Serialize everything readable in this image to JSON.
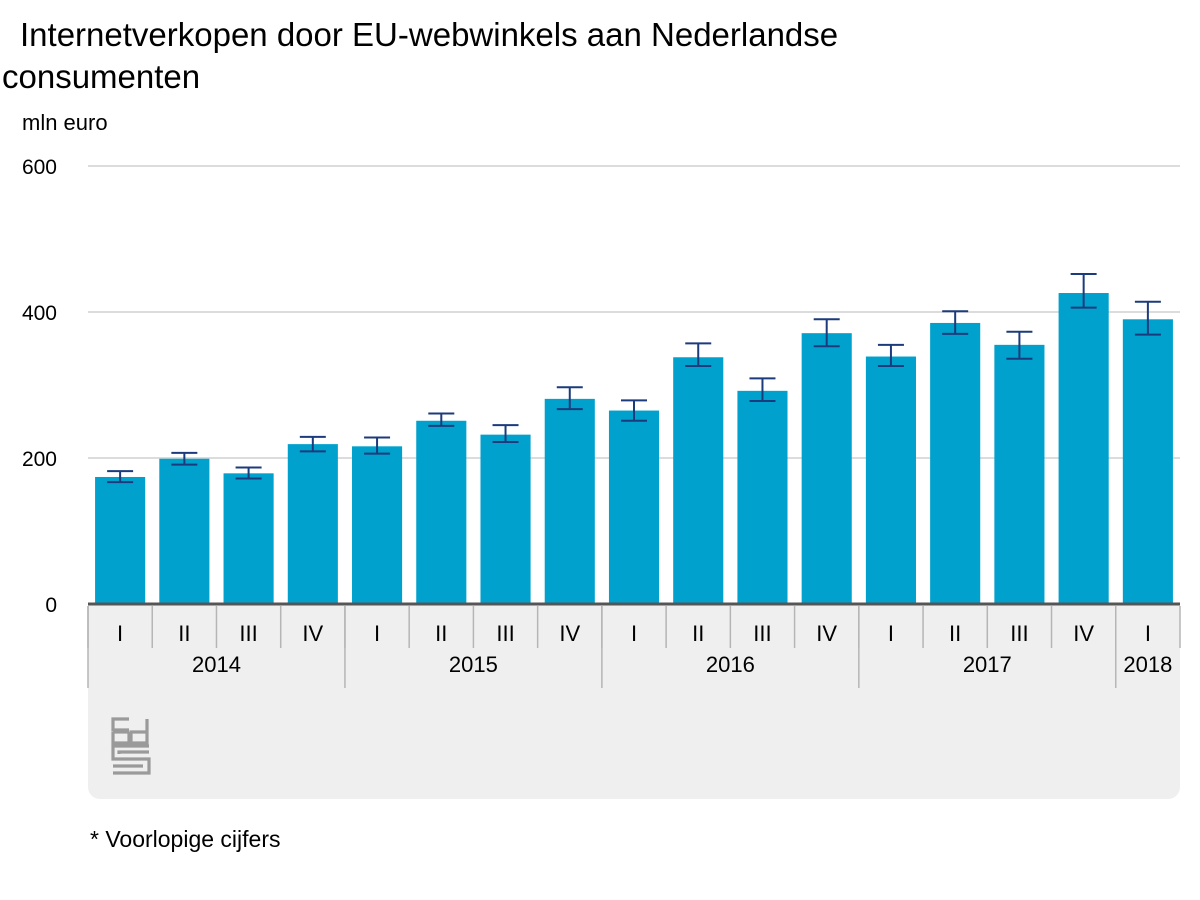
{
  "chart_data": {
    "type": "bar",
    "title": "Internetverkopen door EU-webwinkels aan Nederlandse consumenten",
    "title_lines": [
      "Internetverkopen door EU-webwinkels aan Nederlandse",
      "consumenten"
    ],
    "ylabel": "mln euro",
    "ylim": [
      0,
      600
    ],
    "yticks": [
      0,
      200,
      400,
      600
    ],
    "categories": [
      "I",
      "II",
      "III",
      "IV",
      "I",
      "II",
      "III",
      "IV",
      "I",
      "II",
      "III",
      "IV",
      "I",
      "II",
      "III",
      "IV",
      "I"
    ],
    "years": [
      {
        "label": "2014",
        "span": 4
      },
      {
        "label": "2015",
        "span": 4
      },
      {
        "label": "2016",
        "span": 4
      },
      {
        "label": "2017",
        "span": 4
      },
      {
        "label": "2018",
        "span": 1
      }
    ],
    "values": [
      174,
      199,
      179,
      219,
      216,
      251,
      232,
      281,
      265,
      338,
      292,
      371,
      339,
      385,
      355,
      426,
      390
    ],
    "error_low": [
      167,
      191,
      172,
      209,
      206,
      244,
      222,
      267,
      251,
      326,
      278,
      353,
      326,
      370,
      336,
      406,
      369
    ],
    "error_high": [
      182,
      207,
      187,
      229,
      228,
      261,
      245,
      297,
      279,
      357,
      309,
      390,
      355,
      401,
      373,
      452,
      414
    ],
    "grid": true,
    "colors": {
      "bar": "#00a1cd",
      "error": "#1c3b7c",
      "axis": "#555555",
      "grid": "#c8c8c8",
      "panel": "#efefef"
    }
  },
  "footnote": "* Voorlopige cijfers",
  "logo": "cbs-logo"
}
